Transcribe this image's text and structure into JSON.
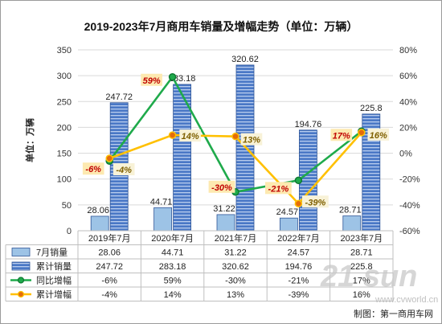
{
  "chart_data": {
    "type": "bar",
    "title": "2019-2023年7月商用车销量及增幅走势（单位：万辆）",
    "ylabel": "单位：万辆",
    "y2label": "",
    "categories": [
      "2019年7月",
      "2020年7月",
      "2021年7月",
      "2022年7月",
      "2023年7月"
    ],
    "ylim": [
      0,
      350
    ],
    "yticks": [
      0,
      50,
      100,
      150,
      200,
      250,
      300,
      350
    ],
    "y2lim": [
      -60,
      80
    ],
    "y2ticks": [
      "-60%",
      "-40%",
      "-20%",
      "0%",
      "20%",
      "40%",
      "60%",
      "80%"
    ],
    "grid": true,
    "legend_placement": "table-below",
    "series": [
      {
        "name": "7月销量",
        "kind": "bar",
        "axis": "left",
        "values": [
          28.06,
          44.71,
          31.22,
          24.57,
          28.71
        ],
        "labels": [
          "28.06",
          "44.71",
          "31.22",
          "24.57",
          "28.71"
        ],
        "color": "#9dc3e6"
      },
      {
        "name": "累计销量",
        "kind": "bar",
        "axis": "left",
        "values": [
          247.72,
          283.18,
          320.62,
          194.76,
          225.8
        ],
        "labels": [
          "247.72",
          "283.18",
          "320.62",
          "194.76",
          "225.8"
        ],
        "color": "#4472c4"
      },
      {
        "name": "同比增幅",
        "kind": "line",
        "axis": "right",
        "values": [
          -6,
          59,
          -30,
          -21,
          17
        ],
        "labels": [
          "-6%",
          "59%",
          "-30%",
          "-21%",
          "17%"
        ],
        "color": "#1faa4b"
      },
      {
        "name": "累计增幅",
        "kind": "line",
        "axis": "right",
        "values": [
          -4,
          14,
          13,
          -39,
          16
        ],
        "labels": [
          "-4%",
          "14%",
          "13%",
          "-39%",
          "16%"
        ],
        "color": "#ffc000"
      }
    ]
  },
  "watermark": "21 sun",
  "watermark_url": "www.cvworld.cn",
  "footer": "制图：第一商用车网"
}
